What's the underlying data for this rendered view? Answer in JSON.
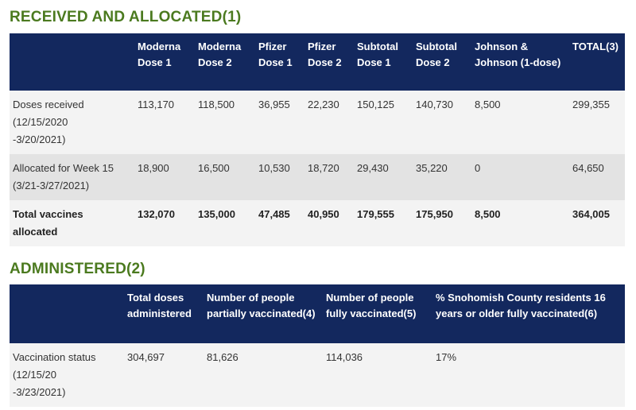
{
  "section1": {
    "title": "RECEIVED AND ALLOCATED(1)",
    "header": [
      "Moderna Dose 1",
      "Moderna Dose 2",
      "Pfizer Dose 1",
      "Pfizer Dose 2",
      "Subtotal Dose 1",
      "Subtotal Dose 2",
      "Johnson & Johnson (1-dose)",
      "TOTAL(3)"
    ],
    "rows": [
      {
        "label": [
          "Doses received",
          "(12/15/2020",
          "-3/20/2021)"
        ],
        "cells": [
          "113,170",
          "118,500",
          "36,955",
          "22,230",
          "150,125",
          "140,730",
          "8,500",
          "299,355"
        ]
      },
      {
        "label": [
          "Allocated for Week 15",
          "(3/21-3/27/2021)"
        ],
        "cells": [
          "18,900",
          "16,500",
          "10,530",
          "18,720",
          "29,430",
          "35,220",
          "0",
          "64,650"
        ]
      },
      {
        "label": [
          "Total vaccines",
          "allocated"
        ],
        "cells": [
          "132,070",
          "135,000",
          "47,485",
          "40,950",
          "179,555",
          "175,950",
          "8,500",
          "364,005"
        ]
      }
    ]
  },
  "section2": {
    "title": "ADMINISTERED(2)",
    "header": [
      "Total doses administered",
      "Number of people partially vaccinated(4)",
      "Number of people fully vaccinated(5)",
      "% Snohomish County residents 16 years or older fully vaccinated(6)"
    ],
    "rows": [
      {
        "label": [
          "Vaccination status",
          "(12/15/20",
          "-3/23/2021)"
        ],
        "cells": [
          "304,697",
          "81,626",
          "114,036",
          "17%"
        ]
      }
    ]
  }
}
